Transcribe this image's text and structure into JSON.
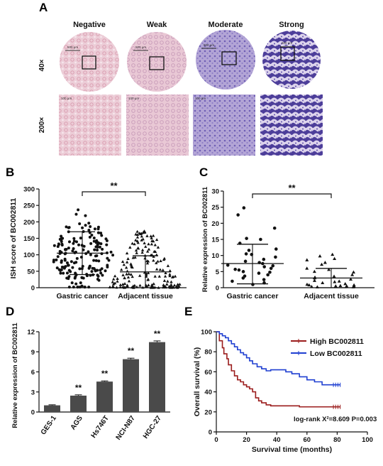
{
  "panel_letters": {
    "a": "A",
    "b": "B",
    "c": "C",
    "d": "D",
    "e": "E"
  },
  "panelA": {
    "col_labels": [
      "Negative",
      "Weak",
      "Moderate",
      "Strong"
    ],
    "row_labels": [
      "40×",
      "200×"
    ],
    "scalebar_40x": "500 μm",
    "scalebar_200x": "100 μm",
    "colors": {
      "tissue_pink": "#e9c3cf",
      "stain_light": "#c7b6d9",
      "stain_dark": "#5a4ba0"
    }
  },
  "chart_data": [
    {
      "panel": "B",
      "type": "scatter",
      "categories": [
        "Gastric cancer",
        "Adjacent tissue"
      ],
      "ylabel": "ISH score of BC002811",
      "ylim": [
        0,
        300
      ],
      "yticks": [
        "0",
        "50",
        "100",
        "150",
        "200",
        "250",
        "300"
      ],
      "series": [
        {
          "mean": 105,
          "sd_low": 40,
          "sd_high": 170,
          "marker": "circle"
        },
        {
          "mean": 48,
          "sd_low": 0,
          "sd_high": 97,
          "marker": "triangle"
        }
      ],
      "significance": "**"
    },
    {
      "panel": "C",
      "type": "scatter",
      "categories": [
        "Gastric cancer",
        "Adjacent tissue"
      ],
      "ylabel": "Relative expression of BC002811",
      "ylim": [
        0,
        30
      ],
      "yticks": [
        "0",
        "5",
        "10",
        "15",
        "20",
        "25",
        "30"
      ],
      "series": [
        {
          "mean": 7.5,
          "sd_low": 1.2,
          "sd_high": 13.5,
          "marker": "circle",
          "points": [
            24.8,
            22.6,
            18.5,
            15.3,
            15.0,
            13.8,
            12.0,
            11.6,
            10.5,
            10.3,
            9.5,
            8.8,
            8.2,
            7.8,
            7.5,
            7.0,
            6.8,
            6.5,
            6.0,
            5.7,
            5.5,
            5.0,
            4.8,
            4.5,
            4.0,
            3.6,
            3.0,
            2.5,
            2.0,
            1.5,
            1.0
          ]
        },
        {
          "mean": 3.0,
          "sd_low": 0,
          "sd_high": 6.0,
          "marker": "triangle",
          "points": [
            10.3,
            9.8,
            9.0,
            8.6,
            7.8,
            7.2,
            6.0,
            5.6,
            5.0,
            4.8,
            4.0,
            3.5,
            3.2,
            3.0,
            2.6,
            2.2,
            2.0,
            1.8,
            1.5,
            1.2,
            1.0,
            0.8,
            0.8,
            0.6,
            0.5,
            0.5,
            0.4,
            0.3,
            0.3,
            0.2,
            0.2
          ]
        }
      ],
      "significance": "**"
    },
    {
      "panel": "D",
      "type": "bar",
      "categories": [
        "GES-1",
        "AGS",
        "Hs746T",
        "NCI-N87",
        "HGC-27"
      ],
      "values": [
        1.0,
        2.45,
        4.55,
        7.9,
        10.45
      ],
      "errors": [
        0.08,
        0.12,
        0.1,
        0.15,
        0.18
      ],
      "significance": [
        "",
        "**",
        "**",
        "**",
        "**"
      ],
      "ylabel": "Relative expression of BC002811",
      "ylim": [
        0,
        12
      ],
      "yticks": [
        "0",
        "3",
        "6",
        "9",
        "12"
      ],
      "color": "#4a4a4a"
    },
    {
      "panel": "E",
      "type": "line",
      "xlabel": "Survival time (months)",
      "ylabel": "Overall survival (%)",
      "xlim": [
        0,
        100
      ],
      "ylim": [
        0,
        100
      ],
      "xticks": [
        "0",
        "20",
        "40",
        "60",
        "80",
        "100"
      ],
      "yticks": [
        "0",
        "20",
        "40",
        "60",
        "80",
        "100"
      ],
      "series": [
        {
          "name": "High BC002811",
          "color": "#9b1c1c",
          "points": [
            [
              0,
              100
            ],
            [
              2,
              91
            ],
            [
              4,
              84
            ],
            [
              5,
              78
            ],
            [
              7,
              73
            ],
            [
              8,
              67
            ],
            [
              10,
              61
            ],
            [
              12,
              56
            ],
            [
              14,
              52
            ],
            [
              16,
              50
            ],
            [
              18,
              47
            ],
            [
              20,
              45
            ],
            [
              22,
              43
            ],
            [
              24,
              40
            ],
            [
              26,
              34
            ],
            [
              28,
              31
            ],
            [
              30,
              29
            ],
            [
              33,
              27
            ],
            [
              36,
              26
            ],
            [
              50,
              26
            ],
            [
              55,
              25
            ],
            [
              82,
              25
            ]
          ]
        },
        {
          "name": "Low BC002811",
          "color": "#1f3fd1",
          "points": [
            [
              0,
              100
            ],
            [
              2,
              98
            ],
            [
              4,
              96
            ],
            [
              6,
              94
            ],
            [
              8,
              91
            ],
            [
              10,
              88
            ],
            [
              12,
              85
            ],
            [
              14,
              82
            ],
            [
              16,
              79
            ],
            [
              18,
              77
            ],
            [
              20,
              74
            ],
            [
              22,
              71
            ],
            [
              24,
              68
            ],
            [
              27,
              65
            ],
            [
              30,
              63
            ],
            [
              33,
              61
            ],
            [
              36,
              62
            ],
            [
              44,
              62
            ],
            [
              46,
              60
            ],
            [
              50,
              58
            ],
            [
              55,
              55
            ],
            [
              60,
              52
            ],
            [
              65,
              50
            ],
            [
              70,
              47
            ],
            [
              82,
              47
            ]
          ]
        }
      ],
      "annotation": "log-rank X²=8.609 P=0.003"
    }
  ]
}
